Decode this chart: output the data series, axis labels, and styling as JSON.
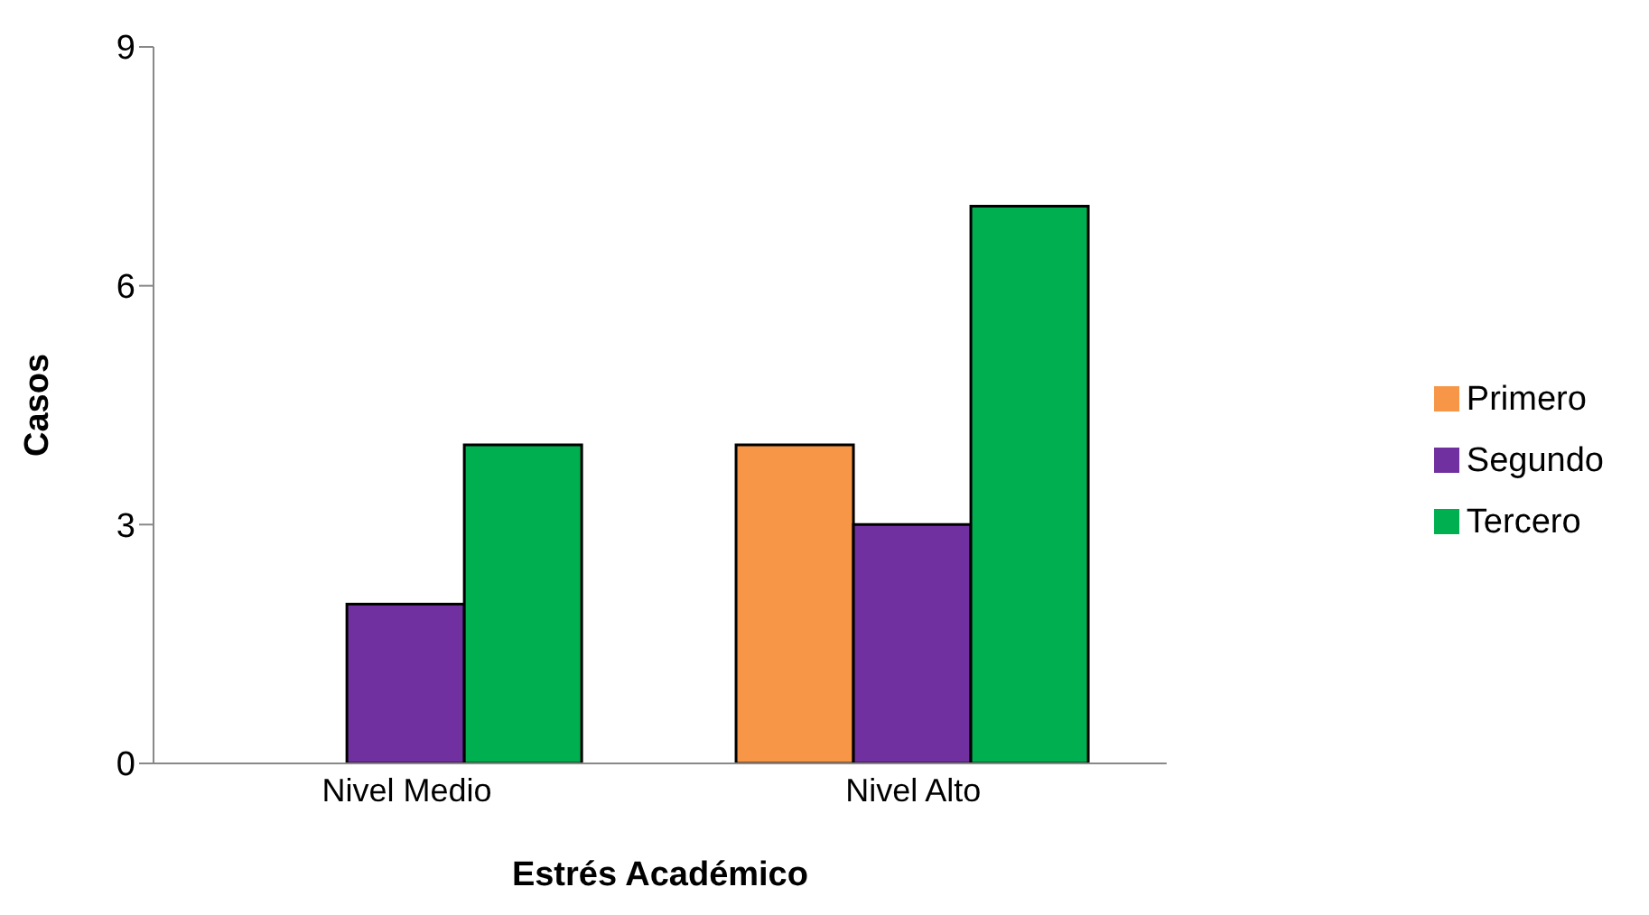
{
  "chart_data": {
    "type": "bar",
    "xlabel": "Estrés Académico",
    "ylabel": "Casos",
    "categories": [
      "Nivel Medio",
      "Nivel Alto"
    ],
    "series": [
      {
        "name": "Primero",
        "color": "#f79646",
        "values": [
          0,
          4
        ]
      },
      {
        "name": "Segundo",
        "color": "#7030a0",
        "values": [
          2,
          3
        ]
      },
      {
        "name": "Tercero",
        "color": "#00b050",
        "values": [
          4,
          7
        ]
      }
    ],
    "ylim": [
      0,
      9
    ],
    "yticks": [
      0,
      3,
      6,
      9
    ],
    "grid": false,
    "legend": "right"
  }
}
